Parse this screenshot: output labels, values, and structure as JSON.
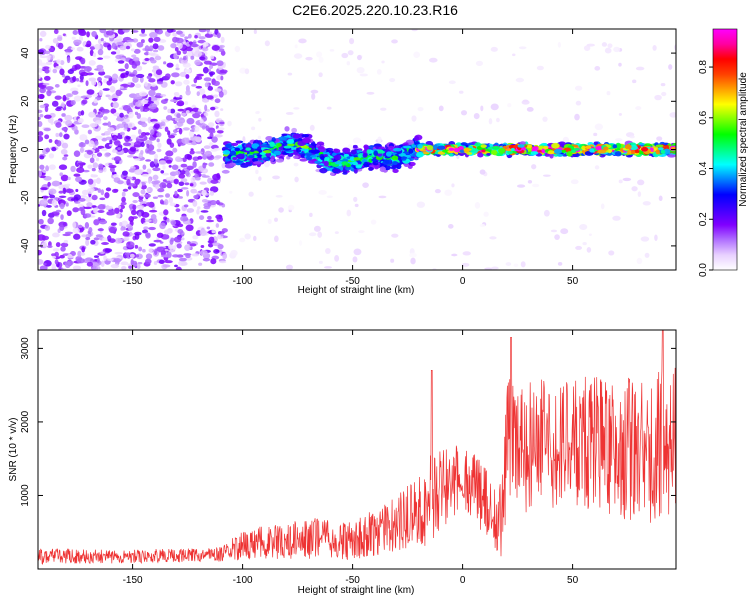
{
  "title": "C2E6.2025.220.10.23.R16",
  "chart_data": [
    {
      "type": "heatmap",
      "xlabel": "Height of straight line (km)",
      "ylabel": "Frequency (Hz)",
      "xlim": [
        -193,
        97
      ],
      "ylim": [
        -50,
        50
      ],
      "x_ticks": [
        -150,
        -100,
        -50,
        0,
        50
      ],
      "y_ticks": [
        -40,
        -20,
        0,
        20,
        40
      ],
      "colorbar": {
        "label": "Normalized spectral amplitude",
        "range": [
          0,
          0.95
        ],
        "ticks": [
          0.0,
          0.2,
          0.4,
          0.6,
          0.8
        ],
        "tick_labels": [
          "0.0",
          "0.2",
          "0.4",
          "0.6",
          "0.8"
        ],
        "colormap": [
          "#ffffff",
          "#e8d0ff",
          "#b070ff",
          "#8000ff",
          "#4000ff",
          "#0000ff",
          "#0080ff",
          "#00ffff",
          "#00ff80",
          "#00ff00",
          "#80ff00",
          "#ffff00",
          "#ffa000",
          "#ff4000",
          "#ff0000",
          "#ff00a0",
          "#ff00ff"
        ]
      },
      "regions": [
        {
          "x_range": [
            -193,
            -108
          ],
          "freq_range": [
            -50,
            50
          ],
          "amplitude": 0.1,
          "pattern": "scattered noise"
        },
        {
          "x_range": [
            -108,
            97
          ],
          "freq_range": [
            -50,
            50
          ],
          "amplitude": 0.03,
          "pattern": "sparse noise"
        },
        {
          "x_range": [
            -108,
            -20
          ],
          "freq_center": -2,
          "freq_halfwidth": 6,
          "amplitude": 0.3,
          "pattern": "wavy band"
        },
        {
          "x_range": [
            -20,
            97
          ],
          "freq_center": 0,
          "freq_halfwidth": 2.5,
          "amplitude": 0.55,
          "pattern": "band"
        }
      ],
      "grid": false
    },
    {
      "type": "line",
      "xlabel": "Height of straight line (km)",
      "ylabel": "SNR (10 * v/v)",
      "xlim": [
        -193,
        97
      ],
      "ylim": [
        0,
        3250
      ],
      "x_ticks": [
        -150,
        -100,
        -50,
        0,
        50
      ],
      "y_ticks": [
        1000,
        2000,
        3000
      ],
      "series_color": "#ee3333",
      "envelope": {
        "x": [
          -193,
          -150,
          -110,
          -100,
          -90,
          -70,
          -50,
          -40,
          -30,
          -25,
          -20,
          -15,
          -10,
          -5,
          0,
          5,
          10,
          15,
          18,
          20,
          22,
          25,
          30,
          40,
          50,
          60,
          70,
          80,
          90,
          97
        ],
        "mid": [
          170,
          170,
          200,
          320,
          360,
          420,
          380,
          500,
          600,
          700,
          780,
          950,
          1100,
          1200,
          1250,
          1150,
          900,
          650,
          800,
          1700,
          1800,
          1700,
          1650,
          1700,
          1650,
          1750,
          1650,
          1600,
          1650,
          1700
        ],
        "amp": [
          110,
          90,
          100,
          200,
          230,
          280,
          260,
          320,
          380,
          450,
          520,
          600,
          600,
          550,
          480,
          500,
          500,
          450,
          650,
          900,
          850,
          850,
          900,
          900,
          900,
          950,
          950,
          1000,
          1100,
          1100
        ]
      },
      "peaks": [
        {
          "x": -14,
          "y": 2700
        },
        {
          "x": 22,
          "y": 3150
        },
        {
          "x": 91,
          "y": 3250
        }
      ],
      "grid": false
    }
  ]
}
